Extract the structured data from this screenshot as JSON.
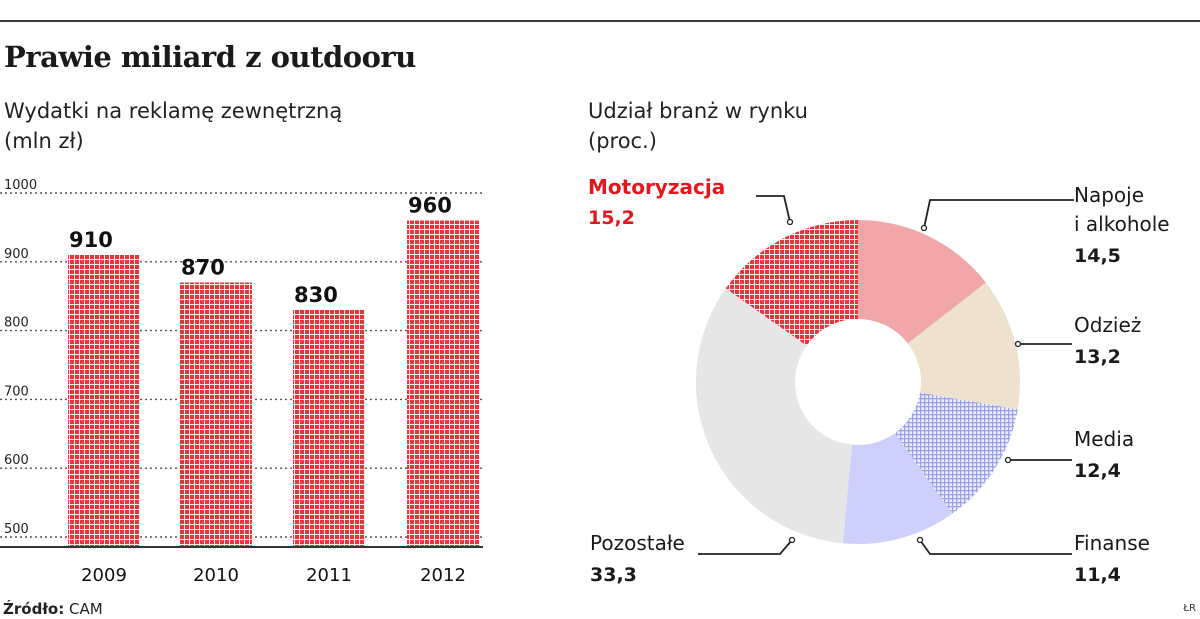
{
  "title": "Prawie miliard z outdooru",
  "source_label": "Źródło:",
  "source_value": "CAM",
  "credit": "ŁR",
  "colors": {
    "bar": "#e8353b",
    "pie": {
      "Motoryzacja": "#e8353b",
      "Napoje i alkohole": "#f1a7a9",
      "Odzież": "#eee2cf",
      "Media": "#9aa0ee",
      "Finanse": "#cdd0fb",
      "Pozostałe": "#e6e6e6"
    },
    "highlight": "#e3171d"
  },
  "chart_data": [
    {
      "type": "bar",
      "subtitle_lines": [
        "Wydatki na reklamę zewnętrzną",
        "(mln zł)"
      ],
      "categories": [
        "2009",
        "2010",
        "2011",
        "2012"
      ],
      "values": [
        910,
        870,
        830,
        960
      ],
      "value_labels": [
        "910",
        "870",
        "830",
        "960"
      ],
      "y_ticks": [
        "500",
        "600",
        "700",
        "800",
        "900",
        "1000"
      ],
      "ylim": [
        500,
        1000
      ],
      "grid": true
    },
    {
      "type": "pie",
      "subtitle_lines": [
        "Udział branż w rynku",
        "(proc.)"
      ],
      "donut": true,
      "slices": [
        {
          "name": "Napoje i alkohole",
          "label_lines": [
            "Napoje",
            "i alkohole"
          ],
          "value": 14.5,
          "value_label": "14,5"
        },
        {
          "name": "Odzież",
          "label_lines": [
            "Odzież"
          ],
          "value": 13.2,
          "value_label": "13,2"
        },
        {
          "name": "Media",
          "label_lines": [
            "Media"
          ],
          "value": 12.4,
          "value_label": "12,4"
        },
        {
          "name": "Finanse",
          "label_lines": [
            "Finanse"
          ],
          "value": 11.4,
          "value_label": "11,4"
        },
        {
          "name": "Pozostałe",
          "label_lines": [
            "Pozostałe"
          ],
          "value": 33.3,
          "value_label": "33,3"
        },
        {
          "name": "Motoryzacja",
          "label_lines": [
            "Motoryzacja"
          ],
          "value": 15.2,
          "value_label": "15,2",
          "highlight": true
        }
      ]
    }
  ]
}
